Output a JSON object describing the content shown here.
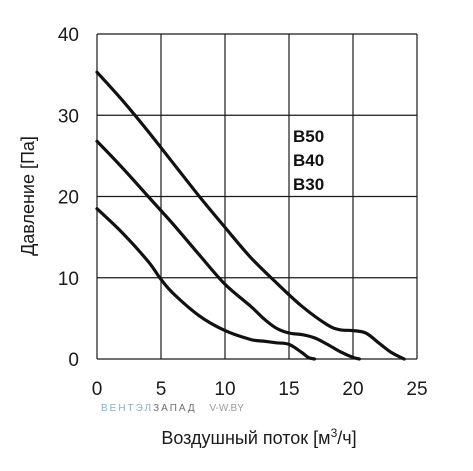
{
  "chart_data": {
    "type": "line",
    "xlabel": "Воздушный поток [м",
    "xlabel_sup": "3",
    "xlabel_tail": "/ч]",
    "ylabel": "Давление [Па]",
    "xlim": [
      0,
      25
    ],
    "ylim": [
      0,
      40
    ],
    "xticks": [
      "0",
      "5",
      "10",
      "15",
      "20",
      "25"
    ],
    "yticks": [
      "0",
      "10",
      "20",
      "30",
      "40"
    ],
    "grid": true,
    "legend_labels": [
      "B50",
      "B40",
      "B30"
    ],
    "series": [
      {
        "name": "B50",
        "x": [
          0,
          2,
          4,
          6,
          8,
          10,
          12,
          14,
          16,
          18,
          19,
          20,
          21,
          22,
          23,
          24
        ],
        "y": [
          35.3,
          31.8,
          28.0,
          24.0,
          20.0,
          16.2,
          12.5,
          9.4,
          6.5,
          4.2,
          3.6,
          3.5,
          3.2,
          2.0,
          0.8,
          0
        ]
      },
      {
        "name": "B40",
        "x": [
          0,
          2,
          4,
          6,
          8,
          10,
          12,
          13,
          14,
          15,
          16,
          17,
          18,
          19,
          20,
          20.5
        ],
        "y": [
          26.8,
          23.5,
          20.0,
          16.5,
          12.8,
          9.2,
          6.5,
          5.0,
          3.8,
          3.2,
          3.0,
          2.6,
          1.8,
          0.9,
          0.2,
          0
        ]
      },
      {
        "name": "B30",
        "x": [
          0,
          2,
          4,
          5,
          6,
          8,
          10,
          12,
          13,
          14,
          15,
          16,
          16.5,
          17
        ],
        "y": [
          18.5,
          15.5,
          12.0,
          9.8,
          8.0,
          5.3,
          3.5,
          2.4,
          2.2,
          2.0,
          1.8,
          0.8,
          0.2,
          0
        ]
      }
    ]
  },
  "watermark": {
    "brand_left": "ВЕНТЭЛ",
    "brand_right": "ЗАПАД",
    "site": "V-W.BY"
  },
  "colors": {
    "line": "#111111",
    "grid": "#1a1a1a",
    "wm_left": "#7fb3d3",
    "wm_right": "#6e6e6e",
    "wm_site": "#9a9a9a"
  }
}
